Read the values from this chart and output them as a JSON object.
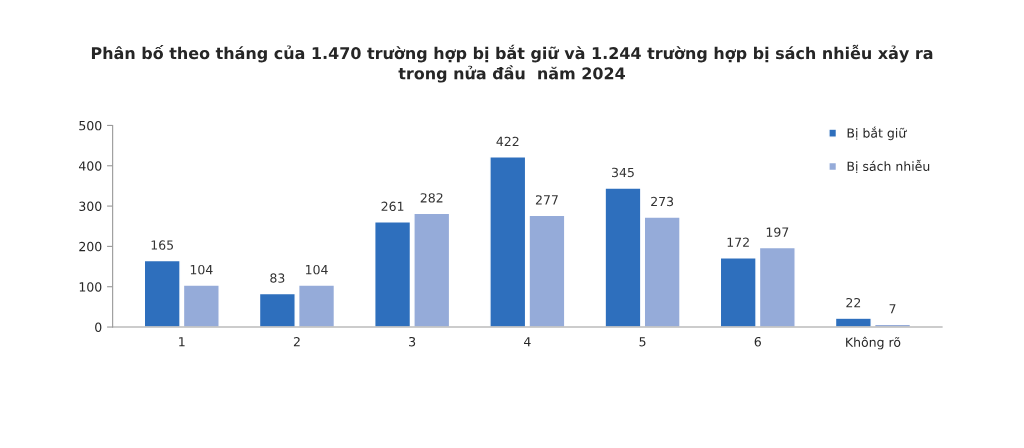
{
  "chart_data": {
    "type": "bar",
    "title": "Phân bố theo tháng của 1.470 trường hợp bị bắt giữ và 1.244 trường hợp bị sách nhiễu xảy ra\ntrong nửa đầu  năm 2024",
    "categories": [
      "1",
      "2",
      "3",
      "4",
      "5",
      "6",
      "Không rõ"
    ],
    "series": [
      {
        "name": "Bị bắt giữ",
        "color": "#2e6fbd",
        "values": [
          165,
          83,
          261,
          422,
          345,
          172,
          22
        ]
      },
      {
        "name": "Bị sách nhiễu",
        "color": "#95abd9",
        "values": [
          104,
          104,
          282,
          277,
          273,
          197,
          7
        ]
      }
    ],
    "ylim": [
      0,
      500
    ],
    "yticks": [
      0,
      100,
      200,
      300,
      400,
      500
    ],
    "grid": false,
    "legend": "top right",
    "data_labels": true
  }
}
